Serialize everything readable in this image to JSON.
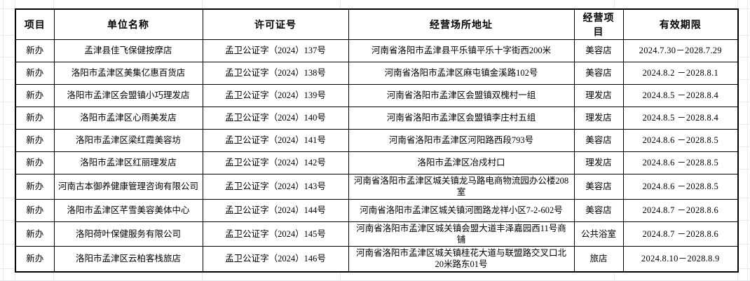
{
  "table": {
    "columns": [
      "项目",
      "单位名称",
      "许可证号",
      "经营场所地址",
      "经营项目",
      "有效期限"
    ],
    "rows": [
      [
        "新办",
        "孟津县佳飞保健按摩店",
        "孟卫公证字（2024）137号",
        "河南省洛阳市孟津县平乐镇平乐十字街西200米",
        "美容店",
        "2024.7.30－2028.7.29"
      ],
      [
        "新办",
        "洛阳市孟津区美集亿惠百货店",
        "孟卫公证字（2024）138号",
        "河南省洛阳市孟津区麻屯镇金溪路102号",
        "美容店",
        "2024.8.2 －2028.8.1"
      ],
      [
        "新办",
        "洛阳市孟津区会盟镇小巧理发店",
        "孟卫公证字（2024）139号",
        "河南省洛阳市孟津区会盟镇双槐村一组",
        "理发店",
        "2024.8.5 －2028.8.4"
      ],
      [
        "新办",
        "洛阳市孟津区心雨美发店",
        "孟卫公证字（2024）140号",
        "河南省洛阳市孟津区会盟镇李庄村五组",
        "理发店",
        "2024.8.5 －2028.8.4"
      ],
      [
        "新办",
        "洛阳市孟津区梁红霞美容坊",
        "孟卫公证字（2024）141号",
        "河南省洛阳市孟津区河阳路西段793号",
        "美容店",
        "2024.8.6 －2028.8.5"
      ],
      [
        "新办",
        "洛阳市孟津区红丽理发店",
        "孟卫公证字（2024）142号",
        "洛阳市孟津区冶戍村口",
        "理发店",
        "2024.8.6 －2028.8.5"
      ],
      [
        "新办",
        "河南古本御养健康管理咨询有限公司",
        "孟卫公证字（2024）143号",
        "河南省洛阳市孟津区城关镇龙马路电商物流园办公楼208室",
        "美容店",
        "2024.8.6 －2028.8.5"
      ],
      [
        "新办",
        "洛阳市孟津区芊雪美容美体中心",
        "孟卫公证字（2024）144号",
        "河南省洛阳市孟津区城关镇河图路龙祥小区7-2-602号",
        "美容店",
        "2024.8.7 －2028.8.6"
      ],
      [
        "新办",
        "洛阳荷叶保健服务有限公司",
        "孟卫公证字（2024）145号",
        "河南省洛阳市孟津区城关镇会盟大道丰泽嘉园西11号商铺",
        "公共浴室",
        "2024.8.7 －2028.8.6"
      ],
      [
        "新办",
        "洛阳市孟津区云柏客栈旅店",
        "孟卫公证字（2024）146号",
        "河南省洛阳市孟津区城关镇桂花大道与联盟路交叉口北20米路东01号",
        "旅店",
        "2024.8.10－2028.8.9"
      ]
    ]
  },
  "colors": {
    "table_border": "#000000",
    "gridline": "#e7e9ea",
    "text": "#000000",
    "background": "#ffffff"
  }
}
